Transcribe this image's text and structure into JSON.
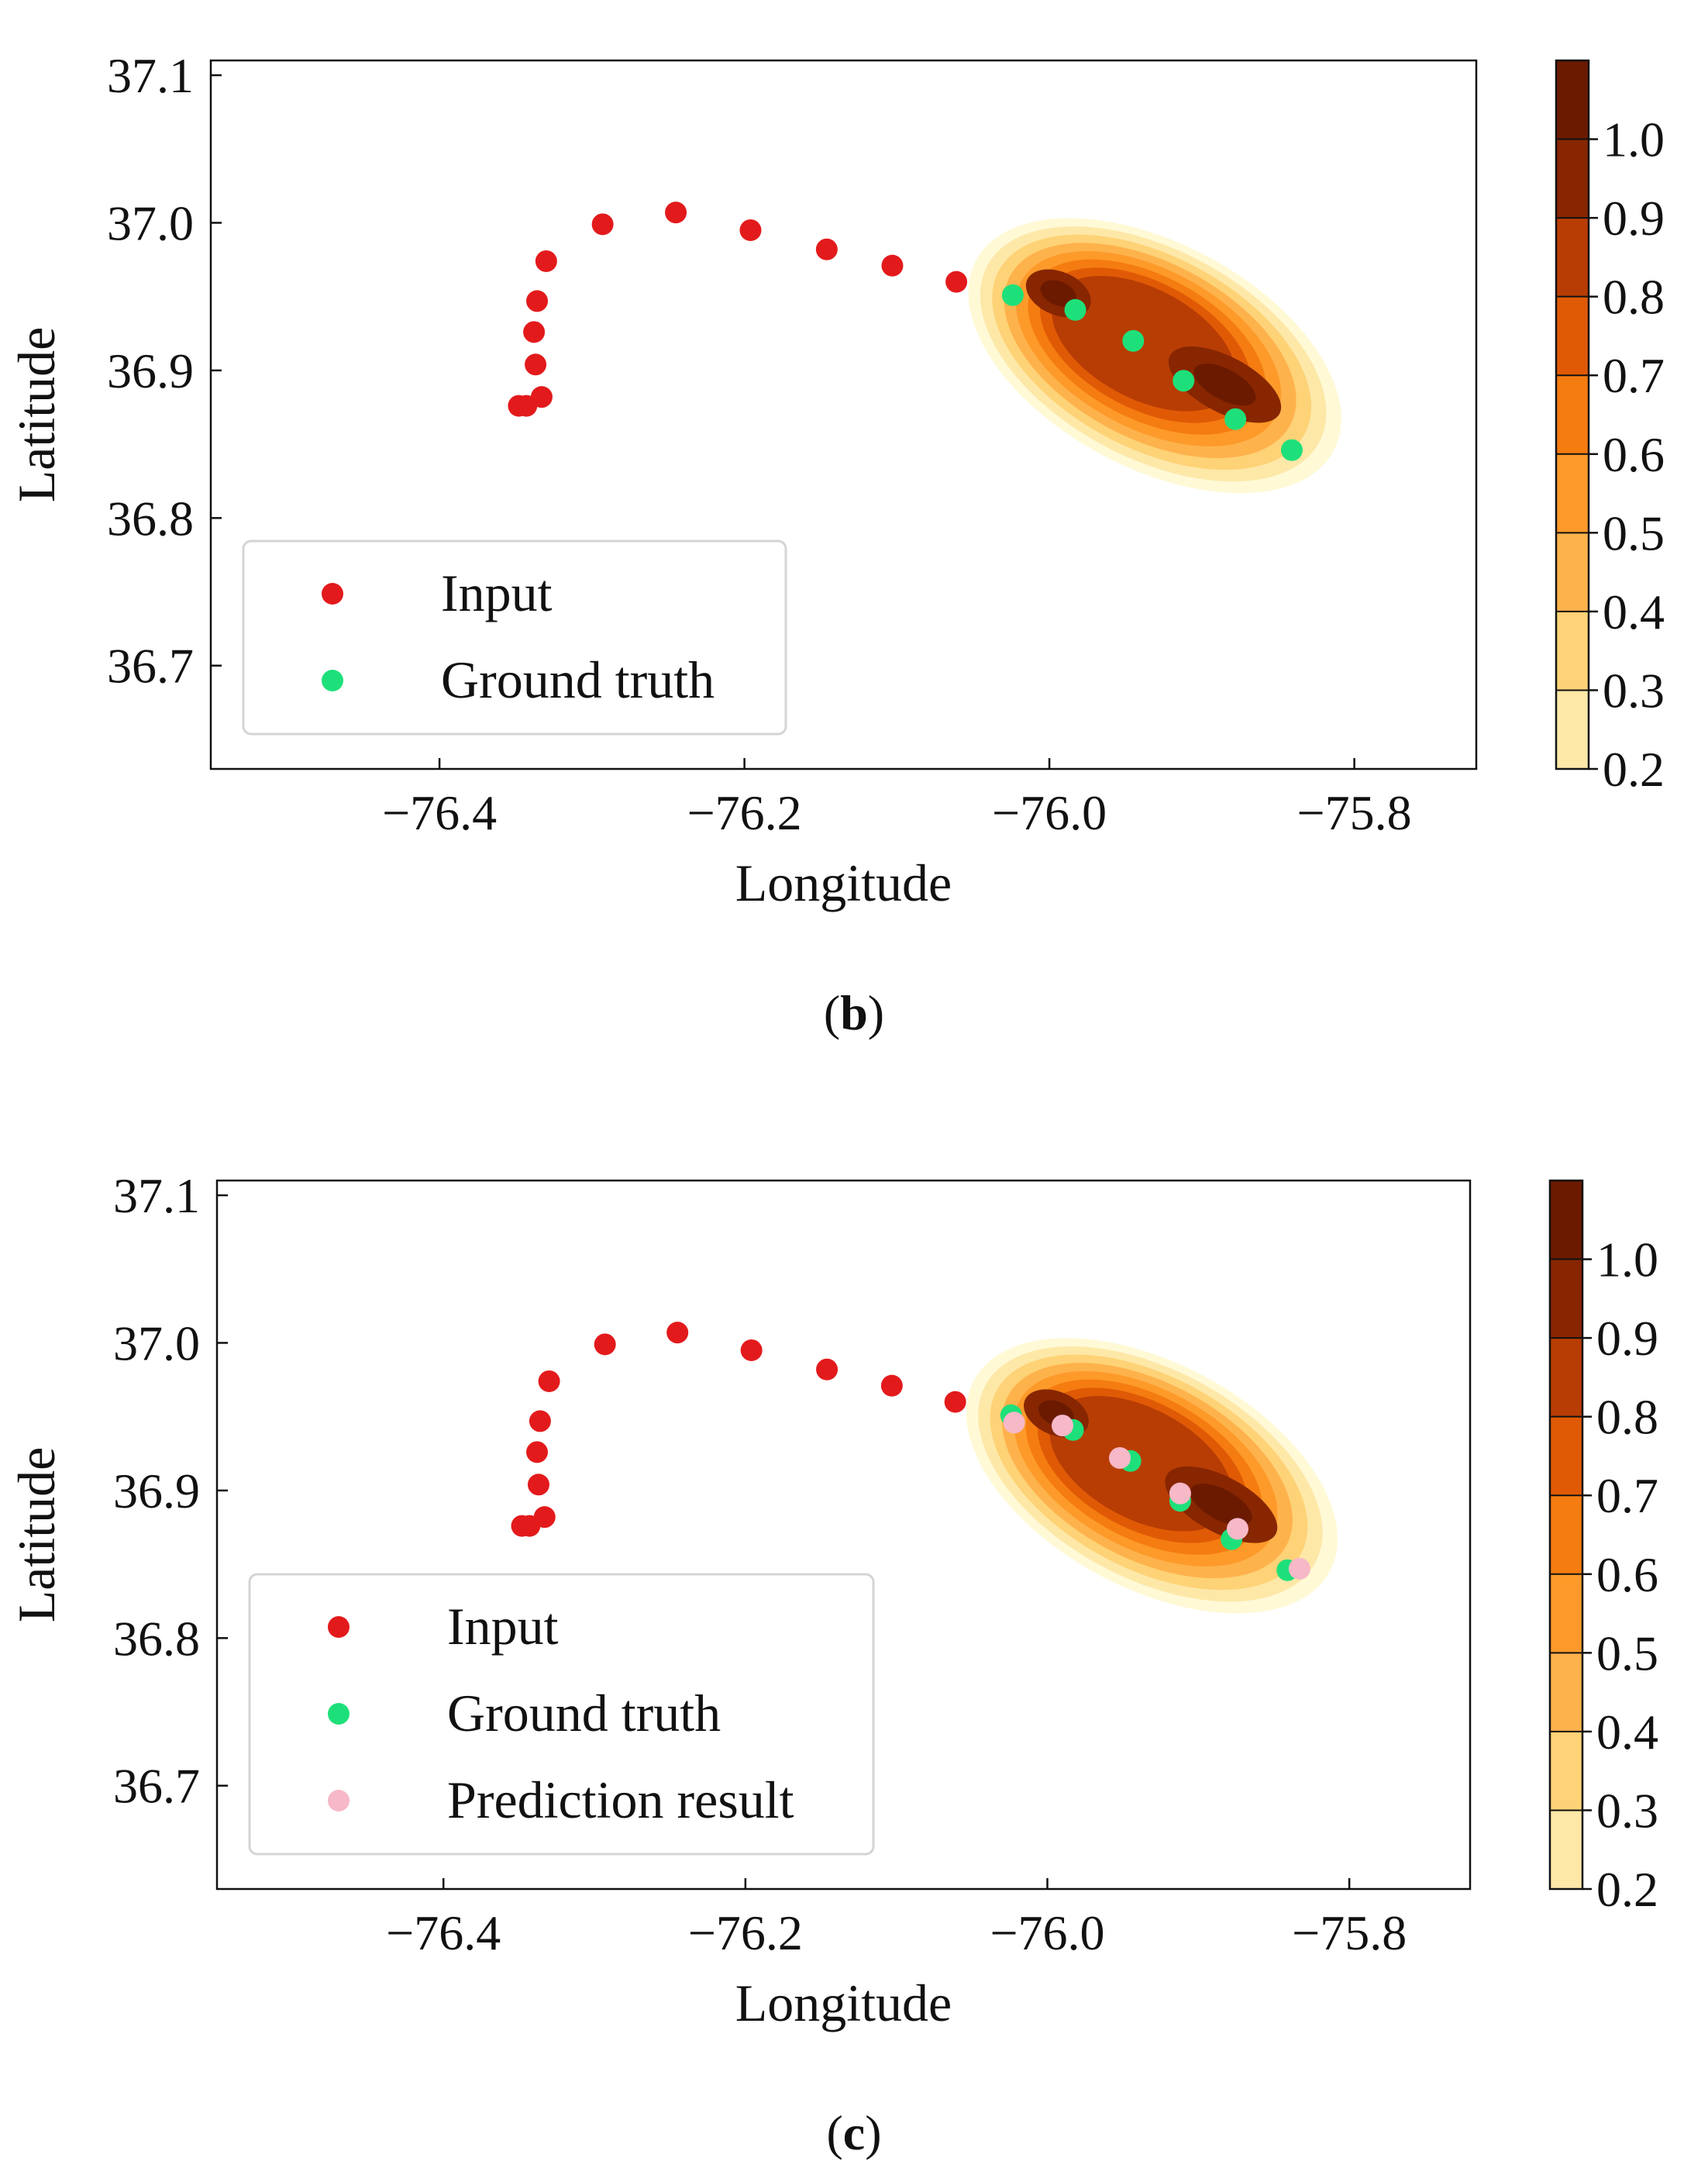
{
  "panels": [
    {
      "id": "b",
      "caption": "b",
      "chart_data": {
        "type": "scatter",
        "xlabel": "Longitude",
        "ylabel": "Latitude",
        "xlim": [
          -76.55,
          -75.72
        ],
        "ylim": [
          36.63,
          37.11
        ],
        "xticks": [
          -76.4,
          -76.2,
          -76.0,
          -75.8
        ],
        "xtick_labels": [
          "−76.4",
          "−76.2",
          "−76.0",
          "−75.8"
        ],
        "yticks": [
          36.7,
          36.8,
          36.9,
          37.0,
          37.1
        ],
        "ytick_labels": [
          "36.7",
          "36.8",
          "36.9",
          "37.0",
          "37.1"
        ],
        "grid": false,
        "legend": "lower-left",
        "series": [
          {
            "name": "Input",
            "color": "#e31a1c",
            "x": [
              -76.348,
              -76.343,
              -76.333,
              -76.337,
              -76.338,
              -76.336,
              -76.33,
              -76.293,
              -76.245,
              -76.196,
              -76.146,
              -76.103,
              -76.061
            ],
            "y": [
              36.876,
              36.876,
              36.882,
              36.904,
              36.926,
              36.947,
              36.974,
              36.999,
              37.007,
              36.995,
              36.982,
              36.971,
              36.96
            ]
          },
          {
            "name": "Ground truth",
            "color": "#1ee07a",
            "x": [
              -76.024,
              -75.983,
              -75.945,
              -75.912,
              -75.878,
              -75.841
            ],
            "y": [
              36.951,
              36.941,
              36.92,
              36.893,
              36.867,
              36.846
            ]
          }
        ],
        "density": {
          "cmap": "YlOrBr",
          "levels": [
            0.2,
            0.3,
            0.4,
            0.5,
            0.6,
            0.7,
            0.8,
            0.9,
            1.0
          ],
          "colorbar_ticks": [
            "0.2",
            "0.3",
            "0.4",
            "0.5",
            "0.6",
            "0.7",
            "0.8",
            "0.9",
            "1.0"
          ],
          "colors": [
            "#fff9d6",
            "#fee8a8",
            "#fed276",
            "#feb24c",
            "#fd9a2a",
            "#f57c10",
            "#e05a06",
            "#b83d04",
            "#872600",
            "#6b1a00"
          ],
          "core_points": [
            {
              "x": -75.99,
              "y": 36.948
            },
            {
              "x": -75.89,
              "y": 36.893
            }
          ]
        }
      }
    },
    {
      "id": "c",
      "caption": "c",
      "chart_data": {
        "type": "scatter",
        "xlabel": "Longitude",
        "ylabel": "Latitude",
        "xlim": [
          -76.55,
          -75.72
        ],
        "ylim": [
          36.63,
          37.11
        ],
        "xticks": [
          -76.4,
          -76.2,
          -76.0,
          -75.8
        ],
        "xtick_labels": [
          "−76.4",
          "−76.2",
          "−76.0",
          "−75.8"
        ],
        "yticks": [
          36.7,
          36.8,
          36.9,
          37.0,
          37.1
        ],
        "ytick_labels": [
          "36.7",
          "36.8",
          "36.9",
          "37.0",
          "37.1"
        ],
        "grid": false,
        "legend": "lower-left",
        "series": [
          {
            "name": "Input",
            "color": "#e31a1c",
            "x": [
              -76.348,
              -76.343,
              -76.333,
              -76.337,
              -76.338,
              -76.336,
              -76.33,
              -76.293,
              -76.245,
              -76.196,
              -76.146,
              -76.103,
              -76.061
            ],
            "y": [
              36.876,
              36.876,
              36.882,
              36.904,
              36.926,
              36.947,
              36.974,
              36.999,
              37.007,
              36.995,
              36.982,
              36.971,
              36.96
            ]
          },
          {
            "name": "Ground truth",
            "color": "#1ee07a",
            "x": [
              -76.024,
              -75.983,
              -75.945,
              -75.912,
              -75.878,
              -75.841
            ],
            "y": [
              36.951,
              36.941,
              36.92,
              36.893,
              36.867,
              36.846
            ]
          },
          {
            "name": "Prediction result",
            "color": "#f7b8c8",
            "x": [
              -76.022,
              -75.99,
              -75.952,
              -75.912,
              -75.874,
              -75.833
            ],
            "y": [
              36.946,
              36.944,
              36.922,
              36.898,
              36.874,
              36.847
            ]
          }
        ],
        "density": {
          "cmap": "YlOrBr",
          "levels": [
            0.2,
            0.3,
            0.4,
            0.5,
            0.6,
            0.7,
            0.8,
            0.9,
            1.0
          ],
          "colorbar_ticks": [
            "0.2",
            "0.3",
            "0.4",
            "0.5",
            "0.6",
            "0.7",
            "0.8",
            "0.9",
            "1.0"
          ],
          "colors": [
            "#fff9d6",
            "#fee8a8",
            "#fed276",
            "#feb24c",
            "#fd9a2a",
            "#f57c10",
            "#e05a06",
            "#b83d04",
            "#872600",
            "#6b1a00"
          ],
          "core_points": [
            {
              "x": -75.99,
              "y": 36.948
            },
            {
              "x": -75.89,
              "y": 36.893
            }
          ]
        }
      }
    }
  ]
}
